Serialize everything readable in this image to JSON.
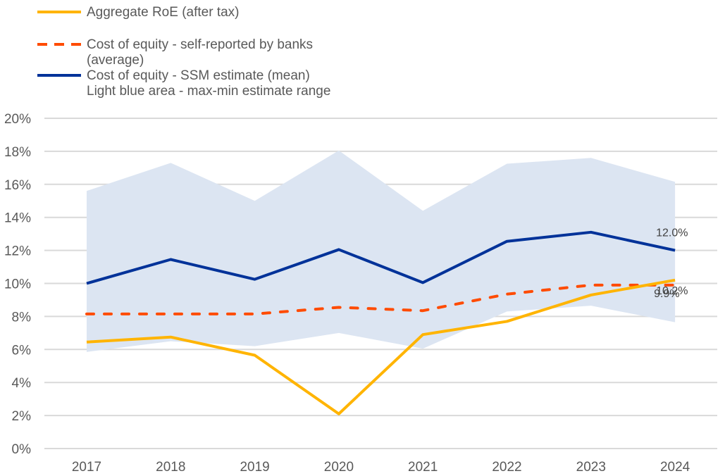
{
  "chart_data": {
    "type": "line",
    "title": "",
    "xlabel": "",
    "ylabel": "",
    "categories": [
      "2017",
      "2018",
      "2019",
      "2020",
      "2021",
      "2022",
      "2023",
      "2024"
    ],
    "ylim": [
      0,
      20
    ],
    "yticks": [
      0,
      2,
      4,
      6,
      8,
      10,
      12,
      14,
      16,
      18,
      20
    ],
    "ytick_labels": [
      "0%",
      "2%",
      "4%",
      "6%",
      "8%",
      "10%",
      "12%",
      "14%",
      "16%",
      "18%",
      "20%"
    ],
    "grid": true,
    "legend_position": "top-left",
    "legend": [
      {
        "key": "roe",
        "lines": [
          "Aggregate RoE (after tax)"
        ],
        "style": "solid",
        "color": "#FFB400"
      },
      {
        "key": "coe_self",
        "lines": [
          "Cost of equity - self-reported by banks",
          "(average)"
        ],
        "style": "dashed",
        "color": "#FF4B00"
      },
      {
        "key": "coe_ssm",
        "lines": [
          "Cost of equity - SSM estimate (mean)",
          "Light blue area - max-min estimate  range"
        ],
        "style": "solid",
        "color": "#003299"
      }
    ],
    "band": {
      "name": "SSM max-min estimate range",
      "color": "#DCE5F2",
      "max": [
        15.6,
        17.3,
        15.0,
        18.05,
        14.4,
        17.25,
        17.6,
        16.15
      ],
      "min": [
        5.85,
        6.5,
        6.2,
        7.0,
        6.05,
        8.3,
        8.65,
        7.65
      ]
    },
    "series": [
      {
        "key": "coe_ssm",
        "name": "Cost of equity - SSM estimate (mean)",
        "color": "#003299",
        "style": "solid",
        "values": [
          10.0,
          11.45,
          10.25,
          12.05,
          10.05,
          12.55,
          13.1,
          12.0
        ]
      },
      {
        "key": "coe_self",
        "name": "Cost of equity - self-reported by banks (average)",
        "color": "#FF4B00",
        "style": "dashed",
        "values": [
          8.15,
          8.15,
          8.15,
          8.55,
          8.35,
          9.35,
          9.9,
          9.9
        ]
      },
      {
        "key": "roe",
        "name": "Aggregate RoE (after tax)",
        "color": "#FFB400",
        "style": "solid",
        "values": [
          6.45,
          6.75,
          5.65,
          2.1,
          6.9,
          7.7,
          9.3,
          10.2
        ]
      }
    ],
    "annotations": [
      {
        "series": "coe_ssm",
        "category": "2024",
        "text": "12.0%"
      },
      {
        "series": "roe",
        "category": "2024",
        "text": "10.2%"
      },
      {
        "series": "coe_self",
        "category": "2024",
        "text": "9.9%"
      }
    ]
  }
}
